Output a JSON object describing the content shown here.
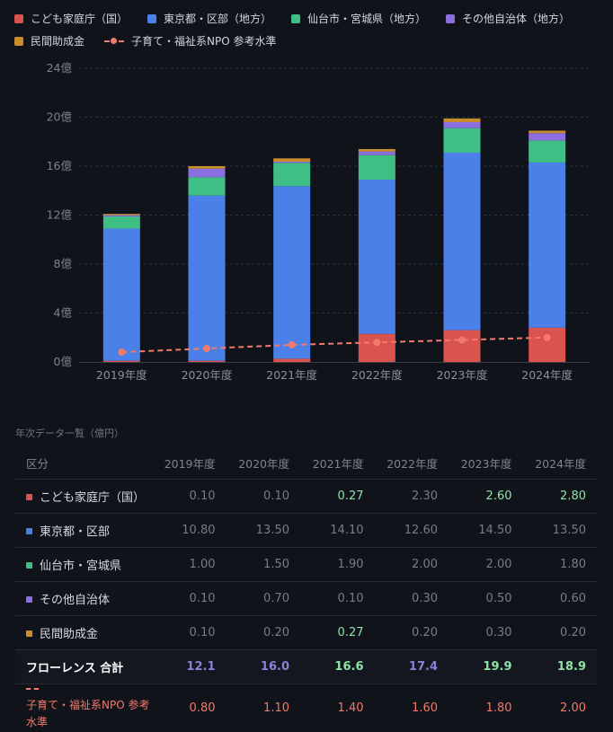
{
  "legend": {
    "items": [
      {
        "label": "こども家庭庁（国）",
        "color": "#d9534f"
      },
      {
        "label": "東京都・区部（地方）",
        "color": "#4a80e8"
      },
      {
        "label": "仙台市・宮城県（地方）",
        "color": "#3fbf86"
      },
      {
        "label": "その他自治体（地方）",
        "color": "#8b6ee0"
      },
      {
        "label": "民間助成金",
        "color": "#c98d2c"
      }
    ],
    "line_label": "子育て・福祉系NPO 参考水準",
    "line_color": "#f27a6b"
  },
  "chart_data": {
    "type": "bar",
    "stacked": true,
    "categories": [
      "2019年度",
      "2020年度",
      "2021年度",
      "2022年度",
      "2023年度",
      "2024年度"
    ],
    "series": [
      {
        "name": "こども家庭庁（国）",
        "values": [
          0.1,
          0.1,
          0.27,
          2.3,
          2.6,
          2.8
        ]
      },
      {
        "name": "東京都・区部（地方）",
        "values": [
          10.8,
          13.5,
          14.1,
          12.6,
          14.5,
          13.5
        ]
      },
      {
        "name": "仙台市・宮城県（地方）",
        "values": [
          1.0,
          1.5,
          1.9,
          2.0,
          2.0,
          1.8
        ]
      },
      {
        "name": "その他自治体（地方）",
        "values": [
          0.1,
          0.7,
          0.1,
          0.3,
          0.5,
          0.6
        ]
      },
      {
        "name": "民間助成金",
        "values": [
          0.1,
          0.2,
          0.27,
          0.2,
          0.3,
          0.2
        ]
      }
    ],
    "line": {
      "name": "子育て・福祉系NPO 参考水準",
      "values": [
        0.8,
        1.1,
        1.4,
        1.6,
        1.8,
        2.0
      ]
    },
    "yticks": [
      "0億",
      "4億",
      "8億",
      "12億",
      "16億",
      "20億",
      "24億"
    ],
    "ylim": [
      0,
      24
    ],
    "grid": true
  },
  "table": {
    "caption": "年次データ一覧（億円）",
    "header": [
      "区分",
      "2019年度",
      "2020年度",
      "2021年度",
      "2022年度",
      "2023年度",
      "2024年度"
    ],
    "rows": [
      {
        "label": "こども家庭庁（国）",
        "color": "#d9534f",
        "values": [
          "0.10",
          "0.10",
          "0.27",
          "2.30",
          "2.60",
          "2.80"
        ],
        "highlight": [
          false,
          false,
          true,
          false,
          true,
          true
        ]
      },
      {
        "label": "東京都・区部",
        "color": "#4a80e8",
        "values": [
          "10.80",
          "13.50",
          "14.10",
          "12.60",
          "14.50",
          "13.50"
        ],
        "highlight": [
          false,
          false,
          false,
          false,
          false,
          false
        ]
      },
      {
        "label": "仙台市・宮城県",
        "color": "#3fbf86",
        "values": [
          "1.00",
          "1.50",
          "1.90",
          "2.00",
          "2.00",
          "1.80"
        ],
        "highlight": [
          false,
          false,
          false,
          false,
          false,
          false
        ]
      },
      {
        "label": "その他自治体",
        "color": "#8b6ee0",
        "values": [
          "0.10",
          "0.70",
          "0.10",
          "0.30",
          "0.50",
          "0.60"
        ],
        "highlight": [
          false,
          false,
          false,
          false,
          false,
          false
        ]
      },
      {
        "label": "民間助成金",
        "color": "#c98d2c",
        "values": [
          "0.10",
          "0.20",
          "0.27",
          "0.20",
          "0.30",
          "0.20"
        ],
        "highlight": [
          false,
          false,
          true,
          false,
          false,
          false
        ]
      }
    ],
    "total": {
      "label": "フローレンス 合計",
      "values": [
        "12.1",
        "16.0",
        "16.6",
        "17.4",
        "19.9",
        "18.9"
      ],
      "highlight": [
        false,
        false,
        true,
        false,
        true,
        true
      ]
    },
    "npo": {
      "label": "子育て・福祉系NPO 参考水準",
      "values": [
        "0.80",
        "1.10",
        "1.40",
        "1.60",
        "1.80",
        "2.00"
      ]
    }
  }
}
